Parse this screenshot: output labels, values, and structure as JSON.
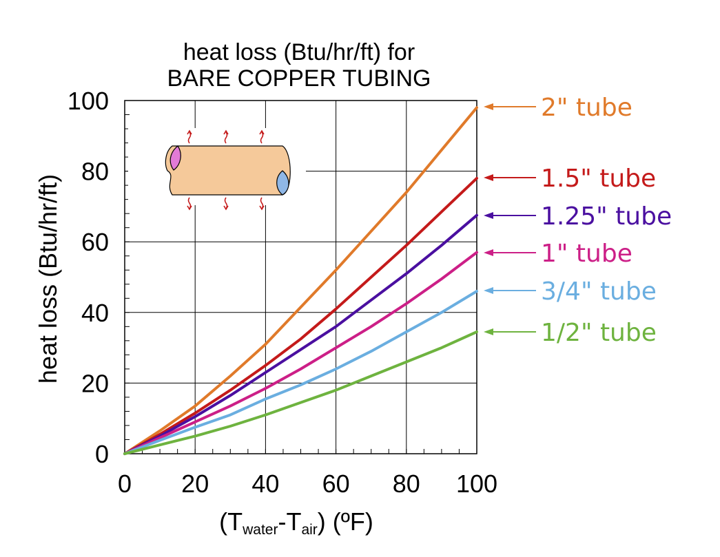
{
  "chart_data": {
    "type": "line",
    "title_line1": "heat loss (Btu/hr/ft) for",
    "title_line2": "BARE COPPER TUBING",
    "ylabel": "heat loss (Btu/hr/ft)",
    "xlabel": {
      "open": "(T",
      "sub1": "water",
      "dash": "-T",
      "sub2": "air",
      "close": ") (ºF)"
    },
    "xlim": [
      0,
      100
    ],
    "ylim": [
      0,
      100
    ],
    "xticks": [
      "0",
      "20",
      "40",
      "60",
      "80",
      "100"
    ],
    "yticks": [
      "0",
      "20",
      "40",
      "60",
      "80",
      "100"
    ],
    "grid": true,
    "legend_placement": "right, at line ends with arrows",
    "x": [
      0,
      10,
      20,
      30,
      40,
      50,
      60,
      70,
      80,
      90,
      100
    ],
    "series": [
      {
        "name": "2\" tube",
        "color": "#e07a2a",
        "values": [
          0,
          6.5,
          13.5,
          22,
          31,
          41.5,
          52,
          63,
          74,
          86,
          98
        ]
      },
      {
        "name": "1.5\" tube",
        "color": "#c41a1a",
        "values": [
          0,
          5.5,
          11.5,
          18,
          25,
          32.5,
          41,
          50,
          59,
          68.5,
          78
        ]
      },
      {
        "name": "1.25\" tube",
        "color": "#4a0fa0",
        "values": [
          0,
          5,
          10.5,
          16.5,
          23,
          29.5,
          36,
          43.5,
          51,
          59,
          67.5
        ]
      },
      {
        "name": "1\" tube",
        "color": "#cc1f87",
        "values": [
          0,
          4.5,
          9,
          13.5,
          18.5,
          24,
          30,
          36,
          42.5,
          49.5,
          57
        ]
      },
      {
        "name": "3/4\" tube",
        "color": "#6aaee0",
        "values": [
          0,
          3.8,
          7.5,
          11,
          15.5,
          19.5,
          24,
          29,
          34.5,
          40,
          46
        ]
      },
      {
        "name": "1/2\" tube",
        "color": "#6eb33f",
        "values": [
          0,
          2.5,
          5,
          7.8,
          11,
          14.5,
          18,
          22,
          26,
          30,
          34.5
        ]
      }
    ]
  },
  "icon": "copper-tube-cross-section-icon"
}
